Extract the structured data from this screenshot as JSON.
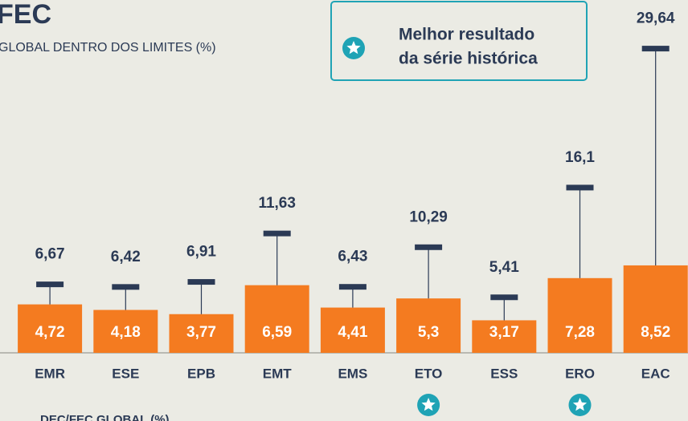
{
  "chart_data": {
    "type": "bar",
    "title": "FEC",
    "subtitle": "GLOBAL DENTRO DOS LIMITES (%)",
    "footer": "DEC/FEC GLOBAL (%)",
    "legend_label": [
      "Melhor resultado",
      "da série histórica"
    ],
    "categories": [
      "EMR",
      "ESE",
      "EPB",
      "EMT",
      "EMS",
      "ETO",
      "ESS",
      "ERO",
      "EAC"
    ],
    "values": [
      4.72,
      4.18,
      3.77,
      6.59,
      4.41,
      5.3,
      3.17,
      7.28,
      8.52
    ],
    "value_labels": [
      "4,72",
      "4,18",
      "3,77",
      "6,59",
      "4,41",
      "5,3",
      "3,17",
      "7,28",
      "8,52"
    ],
    "limits": [
      6.67,
      6.42,
      6.91,
      11.63,
      6.43,
      10.29,
      5.41,
      16.1,
      29.64
    ],
    "limit_labels": [
      "6,67",
      "6,42",
      "6,91",
      "11,63",
      "6,43",
      "10,29",
      "5,41",
      "16,1",
      "29,64"
    ],
    "best": [
      false,
      false,
      false,
      false,
      false,
      true,
      false,
      true,
      false
    ],
    "color": "#f47b20",
    "limit_color": "#2b3a55",
    "best_color": "#1fa3b5",
    "ylim": [
      0,
      34.375
    ]
  }
}
